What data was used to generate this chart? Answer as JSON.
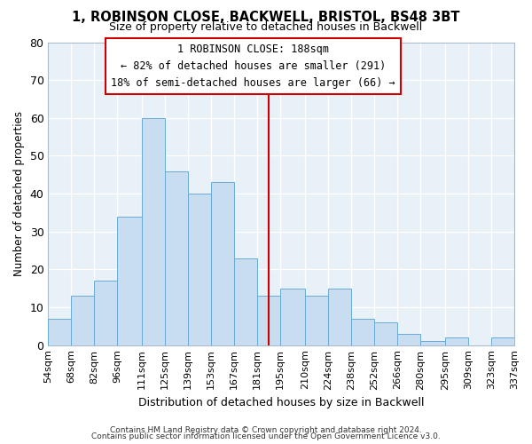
{
  "title": "1, ROBINSON CLOSE, BACKWELL, BRISTOL, BS48 3BT",
  "subtitle": "Size of property relative to detached houses in Backwell",
  "xlabel": "Distribution of detached houses by size in Backwell",
  "ylabel": "Number of detached properties",
  "bar_color": "#c8ddf0",
  "bar_edge_color": "#6aaad4",
  "background_color": "#ffffff",
  "plot_bg_color": "#e8f0f8",
  "grid_color": "#ffffff",
  "vline_x": 188,
  "vline_color": "#cc0000",
  "annotation_text": "1 ROBINSON CLOSE: 188sqm\n← 82% of detached houses are smaller (291)\n18% of semi-detached houses are larger (66) →",
  "annotation_box_color": "#cc0000",
  "footer_line1": "Contains HM Land Registry data © Crown copyright and database right 2024.",
  "footer_line2": "Contains public sector information licensed under the Open Government Licence v3.0.",
  "bin_edges": [
    54,
    68,
    82,
    96,
    111,
    125,
    139,
    153,
    167,
    181,
    195,
    210,
    224,
    238,
    252,
    266,
    280,
    295,
    309,
    323,
    337
  ],
  "bin_labels": [
    "54sqm",
    "68sqm",
    "82sqm",
    "96sqm",
    "111sqm",
    "125sqm",
    "139sqm",
    "153sqm",
    "167sqm",
    "181sqm",
    "195sqm",
    "210sqm",
    "224sqm",
    "238sqm",
    "252sqm",
    "266sqm",
    "280sqm",
    "295sqm",
    "309sqm",
    "323sqm",
    "337sqm"
  ],
  "counts": [
    7,
    13,
    17,
    34,
    60,
    46,
    40,
    43,
    23,
    13,
    15,
    13,
    15,
    7,
    6,
    3,
    1,
    2,
    0,
    2
  ],
  "ylim": [
    0,
    80
  ],
  "yticks": [
    0,
    10,
    20,
    30,
    40,
    50,
    60,
    70,
    80
  ]
}
